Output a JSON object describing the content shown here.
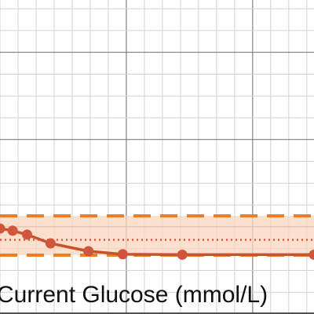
{
  "chart_data": {
    "type": "line",
    "xlabel": "Current Glucose (mmol/L)",
    "ylabel": "",
    "title": "",
    "grid": true,
    "xlim": [
      0,
      8.7
    ],
    "ylim": [
      0,
      7.2
    ],
    "target_band": {
      "lower": 1.35,
      "upper": 2.25,
      "midline": 1.7
    },
    "series": [
      {
        "points": [
          {
            "x": 0.0,
            "y": 1.96
          },
          {
            "x": 0.35,
            "y": 1.91
          },
          {
            "x": 0.75,
            "y": 1.82
          },
          {
            "x": 1.4,
            "y": 1.62
          },
          {
            "x": 2.45,
            "y": 1.44
          },
          {
            "x": 3.4,
            "y": 1.37
          },
          {
            "x": 5.05,
            "y": 1.36
          },
          {
            "x": 8.7,
            "y": 1.36
          }
        ]
      }
    ],
    "colors": {
      "line": "#c9512d",
      "marker": "#d1553a",
      "band_fill": "#fbd5bd",
      "band_edge": "#ef7d22",
      "midline": "#e0563d",
      "grid_minor": "#d2d2d2",
      "grid_major": "#6e6e6e"
    }
  }
}
